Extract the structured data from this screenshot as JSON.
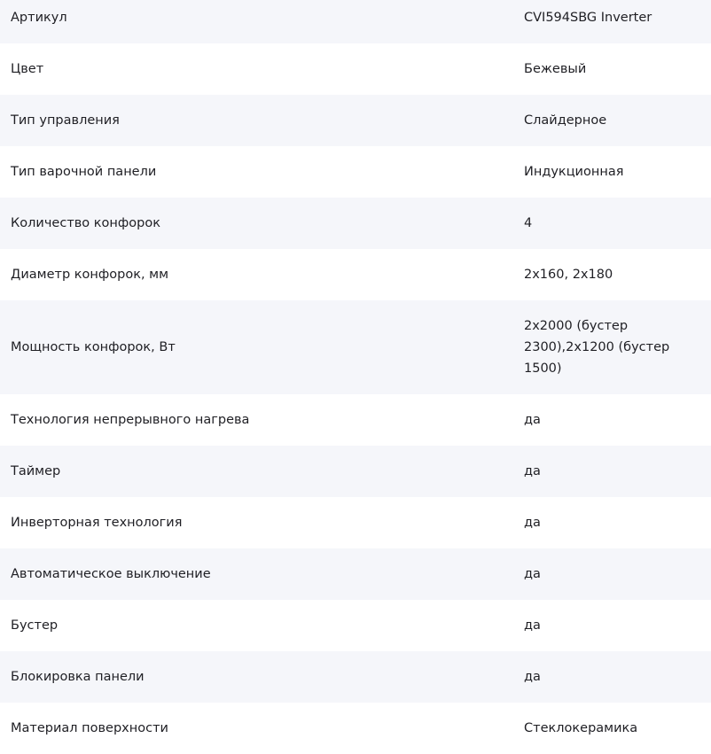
{
  "specs": [
    {
      "name": "Артикул",
      "value": "CVI594SBG Inverter"
    },
    {
      "name": "Цвет",
      "value": "Бежевый"
    },
    {
      "name": "Тип управления",
      "value": "Слайдерное"
    },
    {
      "name": "Тип варочной панели",
      "value": "Индукционная"
    },
    {
      "name": "Количество конфорок",
      "value": "4"
    },
    {
      "name": "Диаметр конфорок, мм",
      "value": "2x160, 2x180"
    },
    {
      "name": "Мощность конфорок, Вт",
      "value": "2x2000 (бустер 2300),2x1200 (бустер 1500)"
    },
    {
      "name": "Технология непрерывного нагрева",
      "value": "да"
    },
    {
      "name": "Таймер",
      "value": "да"
    },
    {
      "name": "Инверторная технология",
      "value": "да"
    },
    {
      "name": "Автоматическое выключение",
      "value": "да"
    },
    {
      "name": "Бустер",
      "value": "да"
    },
    {
      "name": "Блокировка панели",
      "value": "да"
    },
    {
      "name": "Материал поверхности",
      "value": "Стеклокерамика"
    }
  ]
}
